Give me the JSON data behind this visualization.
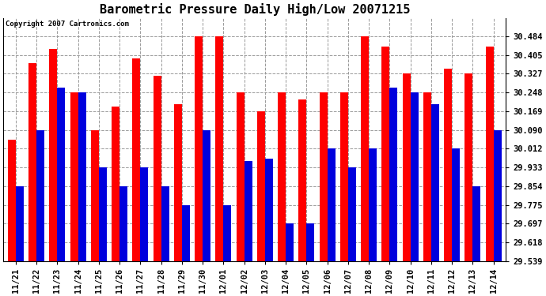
{
  "title": "Barometric Pressure Daily High/Low 20071215",
  "copyright": "Copyright 2007 Cartronics.com",
  "dates": [
    "11/21",
    "11/22",
    "11/23",
    "11/24",
    "11/25",
    "11/26",
    "11/27",
    "11/28",
    "11/29",
    "11/30",
    "12/01",
    "12/02",
    "12/03",
    "12/04",
    "12/05",
    "12/06",
    "12/07",
    "12/08",
    "12/09",
    "12/10",
    "12/11",
    "12/12",
    "12/13",
    "12/14"
  ],
  "highs": [
    30.05,
    30.37,
    30.43,
    30.248,
    30.09,
    30.19,
    30.39,
    30.32,
    30.2,
    30.484,
    30.484,
    30.248,
    30.169,
    30.248,
    30.22,
    30.248,
    30.248,
    30.484,
    30.44,
    30.327,
    30.248,
    30.35,
    30.327,
    30.44
  ],
  "lows": [
    29.854,
    30.09,
    30.27,
    30.248,
    29.933,
    29.854,
    29.933,
    29.854,
    29.775,
    30.09,
    29.775,
    29.96,
    29.97,
    29.697,
    29.697,
    30.012,
    29.933,
    30.012,
    30.27,
    30.248,
    30.2,
    30.012,
    29.854,
    30.09
  ],
  "high_color": "#ff0000",
  "low_color": "#0000dd",
  "background_color": "#ffffff",
  "grid_color": "#999999",
  "yticks": [
    29.539,
    29.618,
    29.697,
    29.775,
    29.854,
    29.933,
    30.012,
    30.09,
    30.169,
    30.248,
    30.327,
    30.405,
    30.484
  ],
  "ylim_min": 29.539,
  "ylim_max": 30.562,
  "title_fontsize": 11,
  "tick_fontsize": 7.5,
  "bar_width": 0.38
}
